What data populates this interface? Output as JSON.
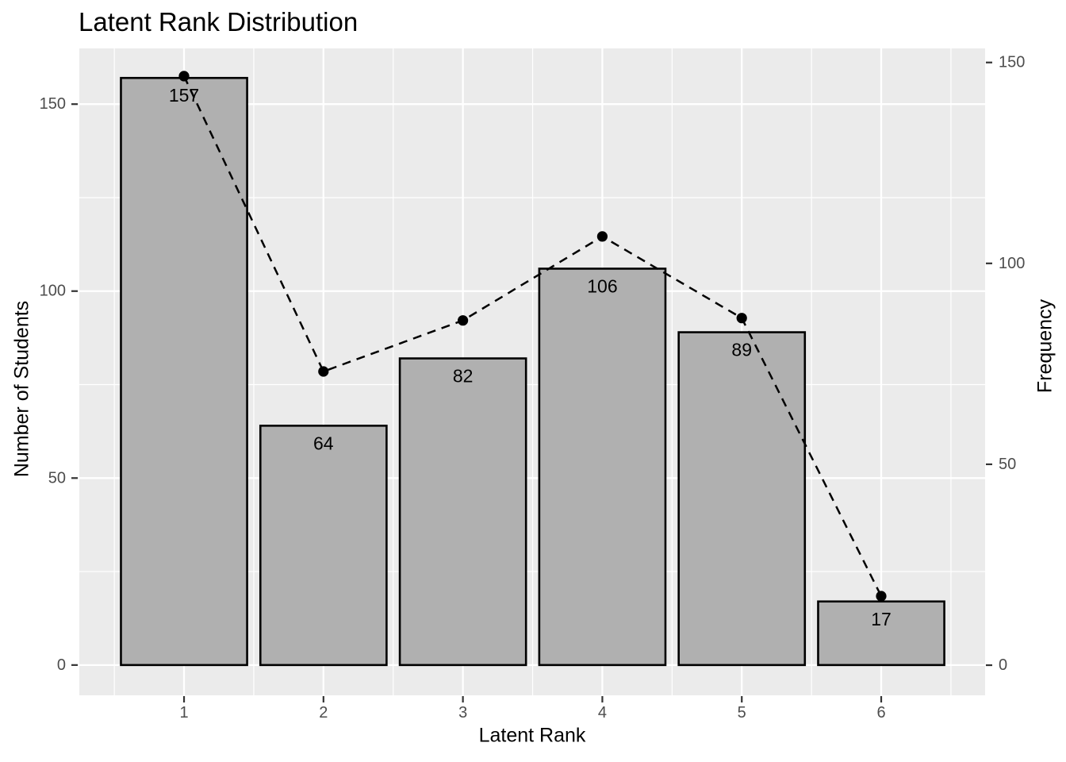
{
  "title": "Latent Rank Distribution",
  "chart_data": {
    "type": "bar",
    "title": "Latent Rank Distribution",
    "xlabel": "Latent Rank",
    "ylabel_left": "Number of Students",
    "ylabel_right": "Frequency",
    "categories": [
      "1",
      "2",
      "3",
      "4",
      "5",
      "6"
    ],
    "series": [
      {
        "name": "Number of Students",
        "type": "bar",
        "axis": "left",
        "values": [
          157,
          64,
          82,
          106,
          89,
          17
        ],
        "labels": [
          "157",
          "64",
          "82",
          "106",
          "89",
          "17"
        ]
      },
      {
        "name": "Frequency",
        "type": "line",
        "axis": "right",
        "style": "dashed",
        "marker": "circle",
        "values": [
          146.6,
          73.1,
          85.8,
          106.7,
          86.4,
          17.2
        ]
      }
    ],
    "axes": {
      "x": {
        "ticks": [
          1,
          2,
          3,
          4,
          5,
          6
        ],
        "range": [
          0.249,
          6.745
        ]
      },
      "left": {
        "ticks": [
          0,
          50,
          100,
          150
        ],
        "tick_labels": [
          "0",
          "50",
          "100",
          "150"
        ],
        "range": [
          -8.1,
          164.9
        ]
      },
      "right": {
        "ticks": [
          0,
          50,
          100,
          150
        ],
        "tick_labels": [
          "0",
          "50",
          "100",
          "150"
        ],
        "range": [
          -7.5,
          153.5
        ]
      }
    },
    "grid": {
      "major": true,
      "minor": true,
      "minor_x_step": 0.5,
      "minor_y": [
        25,
        75,
        125
      ]
    },
    "legend_position": "none",
    "colors": {
      "figure_background": "#FFFFFF",
      "panel_background": "#EBEBEB",
      "gridline": "#FFFFFF",
      "bar_fill": "#B0B0B0",
      "bar_outline": "#000000",
      "line": "#000000",
      "marker": "#000000",
      "axis_text": "#4D4D4D",
      "tick_mark": "#333333",
      "text": "#000000"
    }
  }
}
